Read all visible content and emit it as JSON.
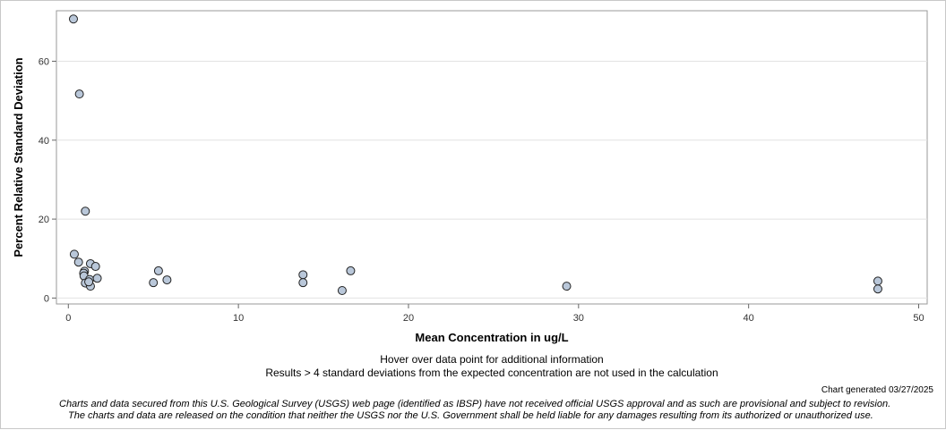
{
  "chart_data": {
    "type": "scatter",
    "xlabel": "Mean Concentration in ug/L",
    "ylabel": "Percent Relative Standard Deviation",
    "xlim": [
      -0.7,
      50.5
    ],
    "ylim": [
      -1.5,
      72.8
    ],
    "xticks": [
      "0",
      "10",
      "20",
      "30",
      "40",
      "50"
    ],
    "yticks": [
      "0",
      "20",
      "40",
      "60"
    ],
    "xtick_values": [
      0,
      10,
      20,
      30,
      40,
      50
    ],
    "ytick_values": [
      0,
      20,
      40,
      60
    ],
    "grid": true,
    "points": [
      {
        "x": 0.3,
        "y": 70.7
      },
      {
        "x": 0.65,
        "y": 51.7
      },
      {
        "x": 1.0,
        "y": 22.0
      },
      {
        "x": 0.35,
        "y": 11.1
      },
      {
        "x": 0.6,
        "y": 9.1
      },
      {
        "x": 1.3,
        "y": 8.7
      },
      {
        "x": 1.6,
        "y": 8.0
      },
      {
        "x": 0.95,
        "y": 6.8
      },
      {
        "x": 0.9,
        "y": 6.3
      },
      {
        "x": 0.92,
        "y": 5.6
      },
      {
        "x": 1.25,
        "y": 4.7
      },
      {
        "x": 1.7,
        "y": 5.0
      },
      {
        "x": 1.0,
        "y": 3.8
      },
      {
        "x": 1.3,
        "y": 3.0
      },
      {
        "x": 1.2,
        "y": 4.1
      },
      {
        "x": 5.0,
        "y": 3.9
      },
      {
        "x": 5.3,
        "y": 6.9
      },
      {
        "x": 5.8,
        "y": 4.6
      },
      {
        "x": 13.8,
        "y": 5.9
      },
      {
        "x": 13.8,
        "y": 3.9
      },
      {
        "x": 16.1,
        "y": 1.9
      },
      {
        "x": 16.6,
        "y": 6.9
      },
      {
        "x": 29.3,
        "y": 3.0
      },
      {
        "x": 47.6,
        "y": 4.3
      },
      {
        "x": 47.6,
        "y": 2.3
      }
    ],
    "marker_fill": "#b9c7d9",
    "marker_stroke": "#222222"
  },
  "notes": {
    "hover": "Hover over data point for additional information",
    "results": "Results > 4 standard deviations from the expected concentration are not used in the calculation"
  },
  "generated": "Chart generated 03/27/2025",
  "disclaimer": {
    "line1": "Charts and data secured from this U.S. Geological Survey (USGS) web page (identified as IBSP) have not received official USGS approval and as such are provisional and subject to revision.",
    "line2": "The charts and data are released on the condition that neither the USGS nor the U.S. Government shall be held liable for any damages resulting from its authorized or unauthorized use."
  }
}
